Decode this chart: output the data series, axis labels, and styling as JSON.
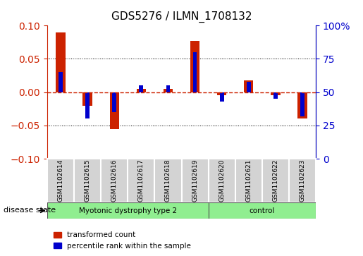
{
  "title": "GDS5276 / ILMN_1708132",
  "samples": [
    "GSM1102614",
    "GSM1102615",
    "GSM1102616",
    "GSM1102617",
    "GSM1102618",
    "GSM1102619",
    "GSM1102620",
    "GSM1102621",
    "GSM1102622",
    "GSM1102623"
  ],
  "red_values": [
    0.09,
    -0.02,
    -0.055,
    0.005,
    0.005,
    0.077,
    -0.005,
    0.018,
    -0.005,
    -0.04
  ],
  "blue_values_pct": [
    65,
    30,
    35,
    55,
    55,
    80,
    43,
    58,
    45,
    32
  ],
  "ylim_left": [
    -0.1,
    0.1
  ],
  "ylim_right": [
    0,
    100
  ],
  "yticks_left": [
    -0.1,
    -0.05,
    0.0,
    0.05,
    0.1
  ],
  "yticks_right": [
    0,
    25,
    50,
    75,
    100
  ],
  "ytick_labels_right": [
    "0",
    "25",
    "50",
    "75",
    "100%"
  ],
  "disease_groups": [
    {
      "label": "Myotonic dystrophy type 2",
      "indices": [
        0,
        1,
        2,
        3,
        4,
        5
      ],
      "color": "#90EE90"
    },
    {
      "label": "control",
      "indices": [
        6,
        7,
        8,
        9
      ],
      "color": "#90EE90"
    }
  ],
  "disease_state_label": "disease state",
  "legend_red": "transformed count",
  "legend_blue": "percentile rank within the sample",
  "red_color": "#CC2200",
  "blue_color": "#0000CC",
  "bar_width": 0.35,
  "blue_bar_width": 0.15,
  "background_color": "#ffffff",
  "grid_color": "#000000",
  "zero_line_color": "#CC2200"
}
